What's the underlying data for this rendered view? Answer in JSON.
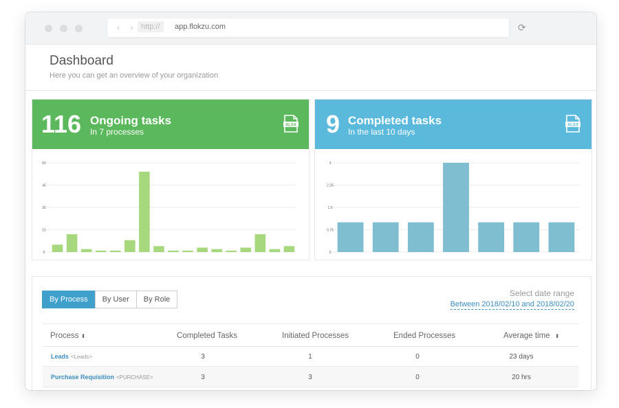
{
  "browser": {
    "protocol": "http://",
    "url": "app.flokzu.com",
    "nav_arrows": "‹ ›",
    "reload_glyph": "⟳"
  },
  "header": {
    "title": "Dashboard",
    "subtitle": "Here you can get an overview of your organization"
  },
  "cards": {
    "ongoing": {
      "count": "116",
      "title": "Ongoing tasks",
      "subtitle": "In 7 processes",
      "export_label": "XLSX",
      "color": "#5cb85c",
      "bar_color": "#a7d87e"
    },
    "completed": {
      "count": "9",
      "title": "Completed tasks",
      "subtitle": "In the last 10 days",
      "export_label": "XLSX",
      "color": "#5bbadb",
      "bar_color": "#7fbdd0"
    }
  },
  "chart_data": [
    {
      "type": "bar",
      "title": "",
      "ylim": [
        0,
        60
      ],
      "yticks": [
        "0",
        "15",
        "30",
        "45",
        "60"
      ],
      "values": [
        5,
        12,
        2,
        1,
        1,
        8,
        54,
        4,
        1,
        1,
        3,
        2,
        1,
        3,
        12,
        2,
        4
      ]
    },
    {
      "type": "bar",
      "title": "",
      "ylim": [
        0,
        3
      ],
      "yticks": [
        "0",
        "0.75",
        "1.5",
        "2.25",
        "3"
      ],
      "values": [
        1,
        1,
        1,
        3,
        1,
        1,
        1
      ]
    }
  ],
  "table": {
    "tabs": [
      "By Process",
      "By User",
      "By Role"
    ],
    "date_label": "Select date range",
    "date_range": "Between 2018/02/10 and 2018/02/20",
    "columns": {
      "process": "Process",
      "completed": "Completed Tasks",
      "initiated": "Initiated Processes",
      "ended": "Ended Processes",
      "avg": "Average time"
    },
    "sort_glyph": "⬍",
    "rows": [
      {
        "name": "Leads",
        "code": "<Leads>",
        "completed": "3",
        "initiated": "1",
        "ended": "0",
        "avg": "23 days"
      },
      {
        "name": "Purchase Requisition",
        "code": "<PURCHASE>",
        "completed": "3",
        "initiated": "3",
        "ended": "0",
        "avg": "20 hrs"
      }
    ]
  }
}
